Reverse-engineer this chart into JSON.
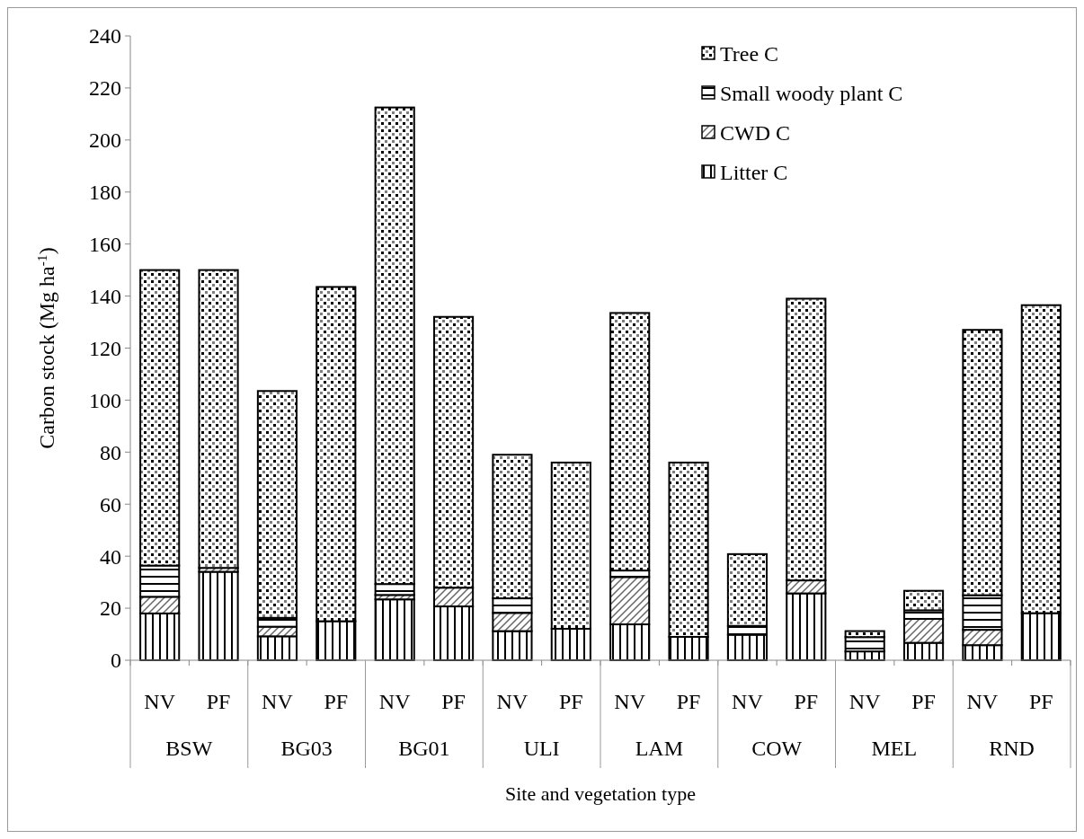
{
  "chart_data": {
    "type": "bar",
    "stacked": true,
    "xlabel": "Site and vegetation type",
    "ylabel": "Carbon stock (Mg ha$^{-1}$)",
    "categories": [
      "NV",
      "PF",
      "NV",
      "PF",
      "NV",
      "PF",
      "NV",
      "PF",
      "NV",
      "PF",
      "NV",
      "PF",
      "NV",
      "PF",
      "NV",
      "PF"
    ],
    "annotations": [
      "BSW",
      "BG03",
      "BG01",
      "ULI",
      "LAM",
      "COW",
      "MEL",
      "RND"
    ],
    "series": [
      {
        "name": "Litter C",
        "color": "#000000",
        "values": [
          18,
          34,
          9.2,
          15,
          23.4,
          20.7,
          11.2,
          12.1,
          13.8,
          9,
          9.8,
          25.7,
          3.4,
          6.7,
          5.8,
          18.1
        ]
      },
      {
        "name": "CWD C",
        "color": "#000000",
        "values": [
          6.4,
          1.5,
          3.7,
          0,
          1.7,
          7.2,
          7,
          0,
          18.2,
          0,
          0,
          5,
          0,
          9.2,
          5.9,
          0
        ]
      },
      {
        "name": "Small woody plant C",
        "color": "#000000",
        "values": [
          12,
          0,
          3.4,
          0,
          4.2,
          0,
          5.6,
          0,
          2.5,
          0,
          3.4,
          0,
          5.5,
          3.3,
          13.3,
          0
        ]
      },
      {
        "name": "Tree C",
        "color": "#000000",
        "values": [
          113.6,
          114.5,
          87.2,
          128.5,
          183.2,
          104.1,
          55.2,
          63.9,
          99,
          67,
          27.6,
          108.3,
          2.3,
          7.5,
          102,
          118.4
        ]
      }
    ],
    "ylim": [
      0,
      240
    ],
    "yticks": [
      0,
      20,
      40,
      60,
      80,
      100,
      120,
      140,
      160,
      180,
      200,
      220,
      240
    ],
    "legend": "top right",
    "grid": false
  }
}
